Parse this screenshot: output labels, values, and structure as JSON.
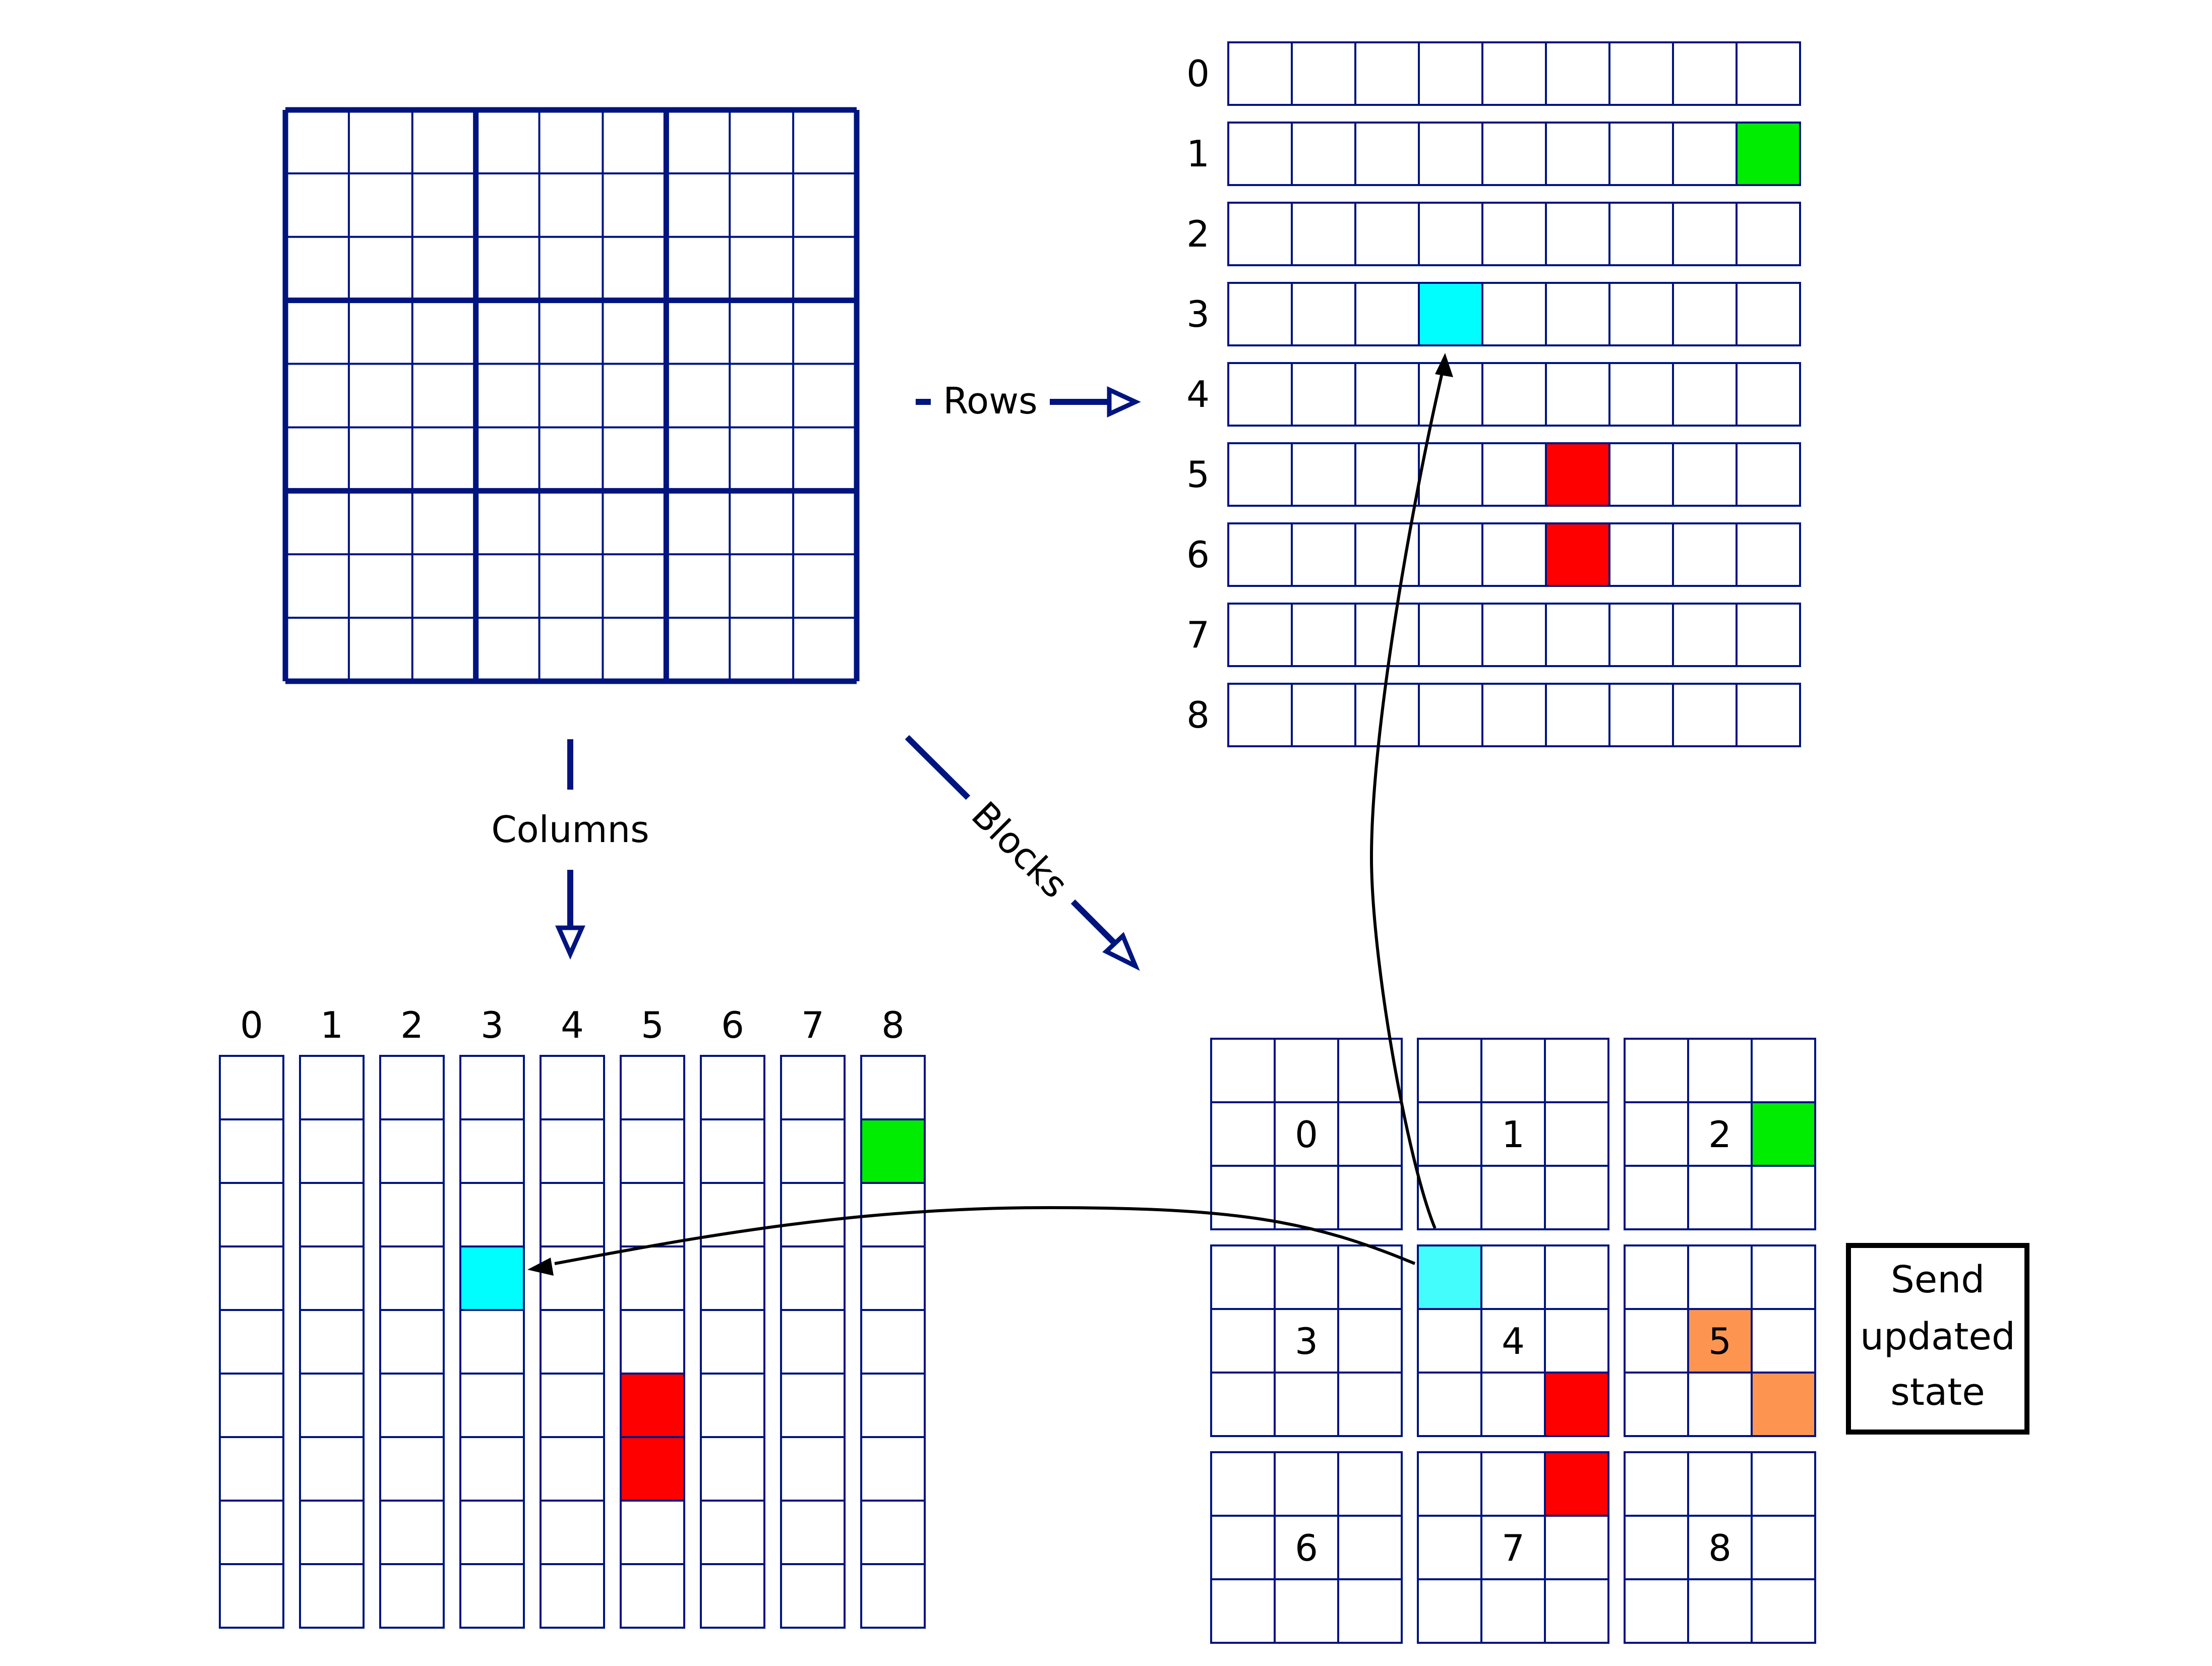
{
  "colors": {
    "grid": "#00147f",
    "green": "#00ec00",
    "cyan": "#00fefe",
    "cyan_light": "#43fdfd",
    "red": "#fe0000",
    "orange": "#fd9551",
    "arrow_black": "#000000"
  },
  "arrows": {
    "rows_label": "Rows",
    "columns_label": "Columns",
    "blocks_label": "Blocks"
  },
  "rows_panel": {
    "labels": [
      "0",
      "1",
      "2",
      "3",
      "4",
      "5",
      "6",
      "7",
      "8"
    ],
    "highlights": [
      {
        "row": 1,
        "col": 8,
        "color": "green"
      },
      {
        "row": 3,
        "col": 3,
        "color": "cyan"
      },
      {
        "row": 5,
        "col": 5,
        "color": "red"
      },
      {
        "row": 6,
        "col": 5,
        "color": "red"
      }
    ]
  },
  "columns_panel": {
    "labels": [
      "0",
      "1",
      "2",
      "3",
      "4",
      "5",
      "6",
      "7",
      "8"
    ],
    "highlights": [
      {
        "col": 8,
        "row": 1,
        "color": "green"
      },
      {
        "col": 3,
        "row": 3,
        "color": "cyan"
      },
      {
        "col": 5,
        "row": 5,
        "color": "red"
      },
      {
        "col": 5,
        "row": 6,
        "color": "red"
      }
    ]
  },
  "blocks_panel": {
    "labels": [
      "0",
      "1",
      "2",
      "3",
      "4",
      "5",
      "6",
      "7",
      "8"
    ],
    "highlights": [
      {
        "block": 2,
        "cell": 5,
        "color": "green"
      },
      {
        "block": 4,
        "cell": 0,
        "color": "cyan_light"
      },
      {
        "block": 4,
        "cell": 8,
        "color": "red"
      },
      {
        "block": 5,
        "cell": 4,
        "color": "orange"
      },
      {
        "block": 5,
        "cell": 8,
        "color": "orange"
      },
      {
        "block": 7,
        "cell": 2,
        "color": "red"
      }
    ]
  },
  "send_box": {
    "lines": [
      "Send",
      "updated",
      "state"
    ]
  }
}
